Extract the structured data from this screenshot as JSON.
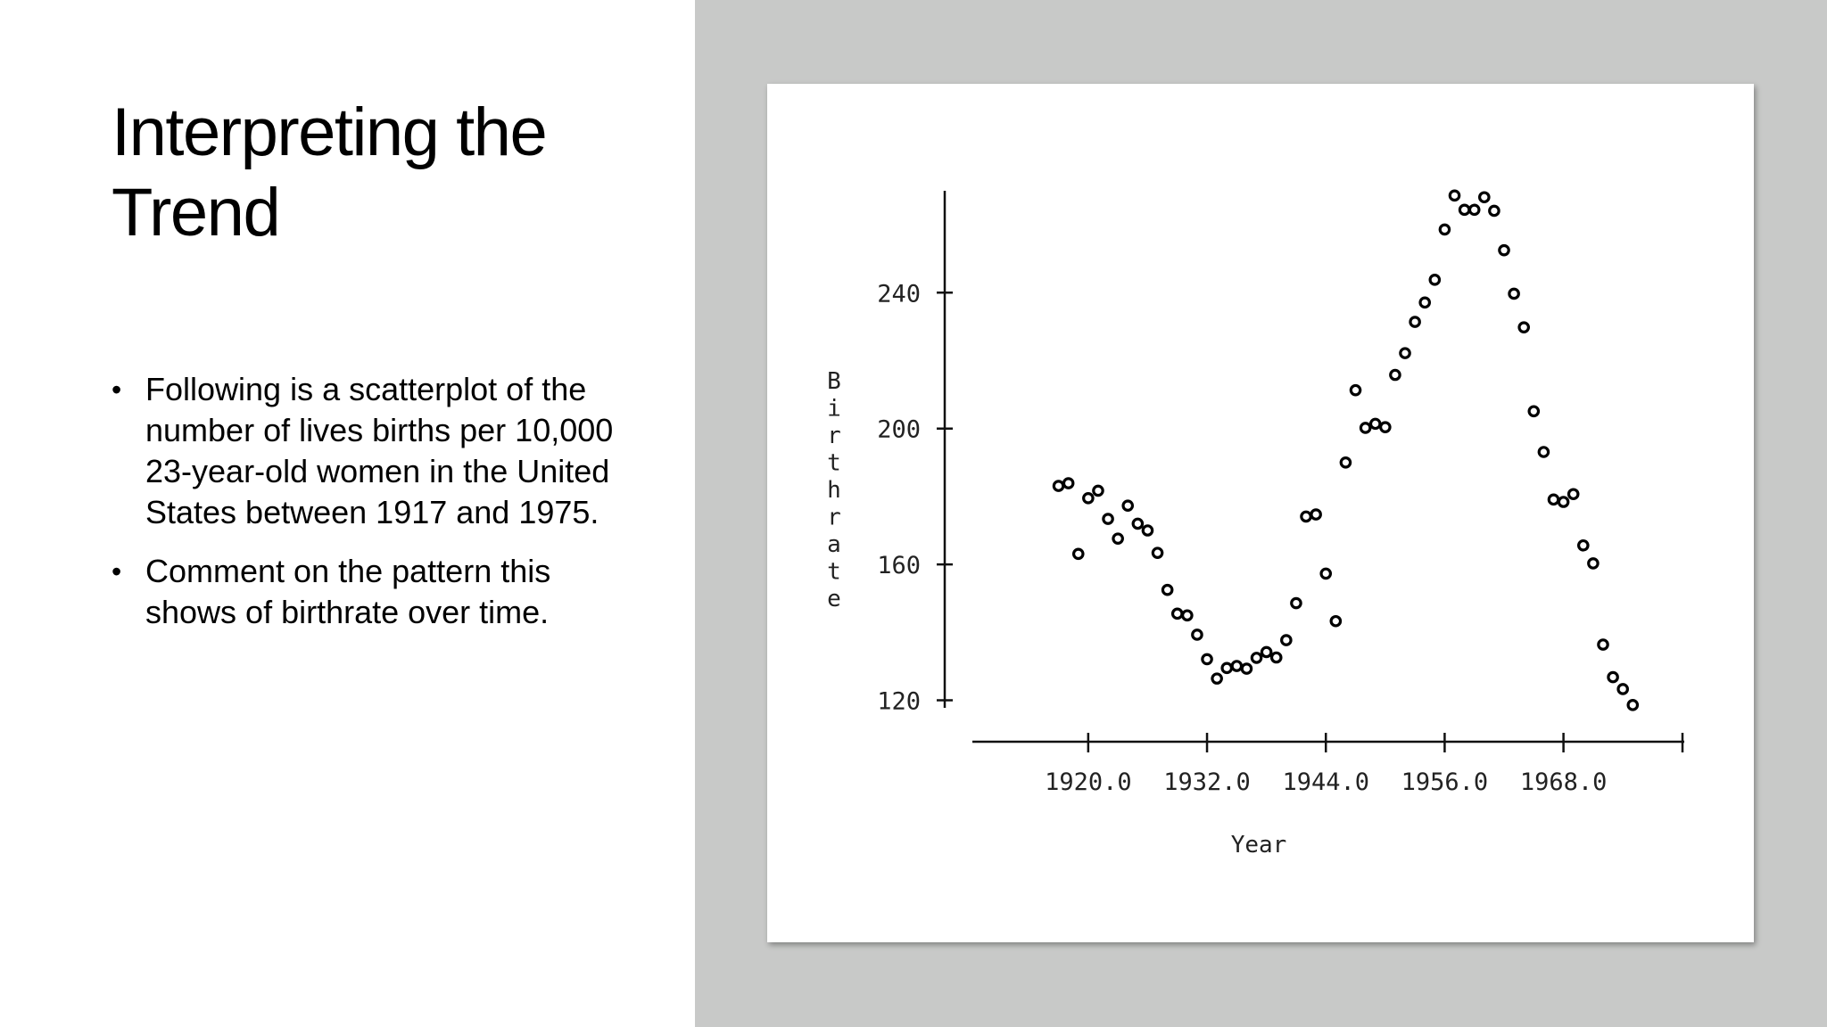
{
  "slide": {
    "title": "Interpreting the Trend",
    "bullets": [
      "Following is a scatterplot of the number of lives births per 10,000 23-year-old women in the United States between 1917 and 1975.",
      "Comment on the pattern this shows of birthrate over time."
    ],
    "background_right": "#c8c9c8"
  },
  "chart_data": {
    "type": "scatter",
    "xlabel": "Year",
    "ylabel": "Birthrate",
    "x_ticks": [
      "1920.0",
      "1932.0",
      "1944.0",
      "1956.0",
      "1968.0"
    ],
    "x_tick_values": [
      1920,
      1932,
      1944,
      1956,
      1968
    ],
    "y_ticks": [
      "120",
      "160",
      "200",
      "240"
    ],
    "y_tick_values": [
      120,
      160,
      200,
      240
    ],
    "xlim": [
      1908.3,
      1980.2
    ],
    "ylim": [
      107.8,
      270
    ],
    "grid": false,
    "marker": "open-circle",
    "series": [
      {
        "points": [
          [
            1917,
            183.1
          ],
          [
            1918,
            183.9
          ],
          [
            1919,
            163.1
          ],
          [
            1920,
            179.5
          ],
          [
            1921,
            181.7
          ],
          [
            1922,
            173.4
          ],
          [
            1923,
            167.6
          ],
          [
            1924,
            177.3
          ],
          [
            1925,
            172.0
          ],
          [
            1926,
            170.0
          ],
          [
            1927,
            163.4
          ],
          [
            1928,
            152.5
          ],
          [
            1929,
            145.5
          ],
          [
            1930,
            145.0
          ],
          [
            1931,
            139.3
          ],
          [
            1932,
            132.1
          ],
          [
            1933,
            126.4
          ],
          [
            1934,
            129.5
          ],
          [
            1935,
            130.1
          ],
          [
            1936,
            129.3
          ],
          [
            1937,
            132.5
          ],
          [
            1938,
            134.2
          ],
          [
            1939,
            132.6
          ],
          [
            1940,
            137.7
          ],
          [
            1941,
            148.6
          ],
          [
            1942,
            174.1
          ],
          [
            1943,
            174.7
          ],
          [
            1944,
            157.3
          ],
          [
            1945,
            143.3
          ],
          [
            1946,
            190.0
          ],
          [
            1947,
            211.3
          ],
          [
            1948,
            200.2
          ],
          [
            1949,
            201.4
          ],
          [
            1950,
            200.4
          ],
          [
            1951,
            215.8
          ],
          [
            1952,
            222.2
          ],
          [
            1953,
            231.4
          ],
          [
            1954,
            237.1
          ],
          [
            1955,
            243.8
          ],
          [
            1956,
            258.6
          ],
          [
            1957,
            268.6
          ],
          [
            1958,
            264.4
          ],
          [
            1959,
            264.4
          ],
          [
            1960,
            268.1
          ],
          [
            1961,
            264.1
          ],
          [
            1962,
            252.5
          ],
          [
            1963,
            239.7
          ],
          [
            1964,
            229.8
          ],
          [
            1965,
            205.1
          ],
          [
            1966,
            193.1
          ],
          [
            1967,
            179.1
          ],
          [
            1968,
            178.4
          ],
          [
            1969,
            180.7
          ],
          [
            1970,
            165.6
          ],
          [
            1971,
            160.3
          ],
          [
            1972,
            136.4
          ],
          [
            1973,
            126.8
          ],
          [
            1974,
            123.3
          ],
          [
            1975,
            118.6
          ]
        ]
      }
    ]
  }
}
